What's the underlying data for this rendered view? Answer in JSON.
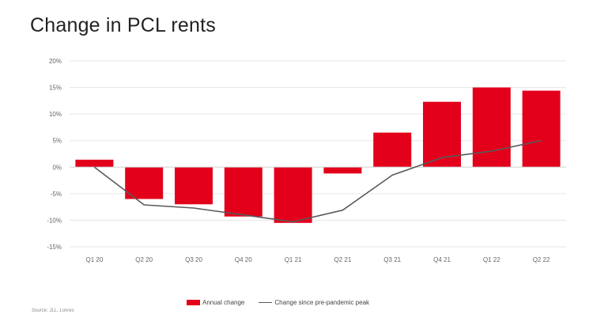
{
  "title": "Change in PCL rents",
  "source": "Source: JLL, Lonres",
  "chart_data": {
    "type": "bar",
    "categories": [
      "Q1 20",
      "Q2 20",
      "Q3 20",
      "Q4 20",
      "Q1 21",
      "Q2 21",
      "Q3 21",
      "Q4 21",
      "Q1 22",
      "Q2 22"
    ],
    "series": [
      {
        "name": "Annual change",
        "type": "bar",
        "color": "#E3001B",
        "values": [
          1.4,
          -6.0,
          -7.0,
          -9.3,
          -10.5,
          -1.2,
          6.5,
          12.3,
          15.0,
          14.4
        ]
      },
      {
        "name": "Change since pre-pandemic peak",
        "type": "line",
        "color": "#5a5a5a",
        "values": [
          0,
          -7.1,
          -7.7,
          -9.0,
          -10.3,
          -8.1,
          -1.5,
          1.8,
          3.0,
          5.0
        ]
      }
    ],
    "yticks": [
      "20%",
      "15%",
      "10%",
      "5%",
      "0%",
      "-5%",
      "-10%",
      "-15%"
    ],
    "ylim": [
      -15,
      20
    ],
    "grid": true,
    "legend_position": "bottom"
  }
}
